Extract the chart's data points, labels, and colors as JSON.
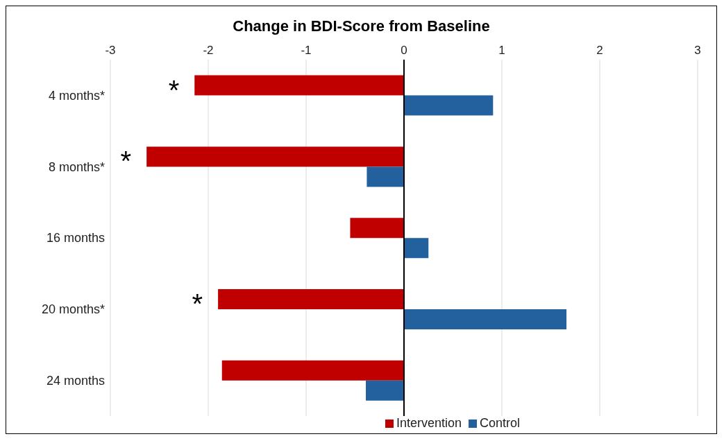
{
  "chart_data": {
    "type": "bar",
    "orientation": "horizontal",
    "title": "Change in BDI-Score from Baseline",
    "categories": [
      "4 months*",
      "8 months*",
      "16 months",
      "20 months*",
      "24 months"
    ],
    "series": [
      {
        "name": "Intervention",
        "color": "#c00000",
        "values": [
          -2.14,
          -2.63,
          -0.55,
          -1.9,
          -1.86
        ]
      },
      {
        "name": "Control",
        "color": "#23609e",
        "values": [
          0.91,
          -0.38,
          0.25,
          1.66,
          -0.39
        ]
      }
    ],
    "xlim": [
      -3,
      3
    ],
    "xticks": [
      -3,
      -2,
      -1,
      0,
      1,
      2,
      3
    ],
    "grid": "x",
    "legend": "bottom",
    "annotations": [
      {
        "text": "*",
        "x": -2.14,
        "y": "4 months*"
      },
      {
        "text": "*",
        "x": -2.63,
        "y": "8 months*"
      },
      {
        "text": "*",
        "x": -1.9,
        "y": "20 months*"
      }
    ]
  }
}
